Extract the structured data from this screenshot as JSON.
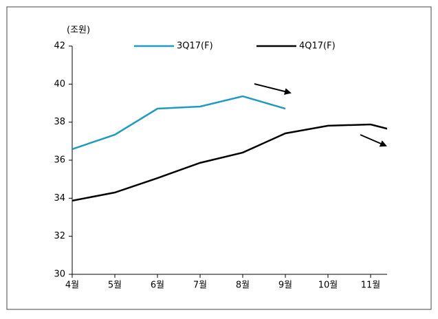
{
  "chart_data": {
    "type": "line",
    "unit": "(조원)",
    "categories": [
      "4월",
      "5월",
      "6월",
      "7월",
      "8월",
      "9월",
      "10월",
      "11월",
      null
    ],
    "series": [
      {
        "name": "3Q17(F)",
        "color": "#1e9bbf",
        "values": [
          36.58,
          37.34,
          38.71,
          38.82,
          39.36,
          38.71,
          null,
          null,
          null
        ]
      },
      {
        "name": "4Q17(F)",
        "color": "#000000",
        "values": [
          33.87,
          34.3,
          35.06,
          35.86,
          36.4,
          37.41,
          37.81,
          37.88,
          37.3
        ]
      }
    ],
    "ylim": [
      30,
      42
    ],
    "yticks": [
      30,
      32,
      34,
      36,
      38,
      40,
      42
    ],
    "grid": false
  }
}
